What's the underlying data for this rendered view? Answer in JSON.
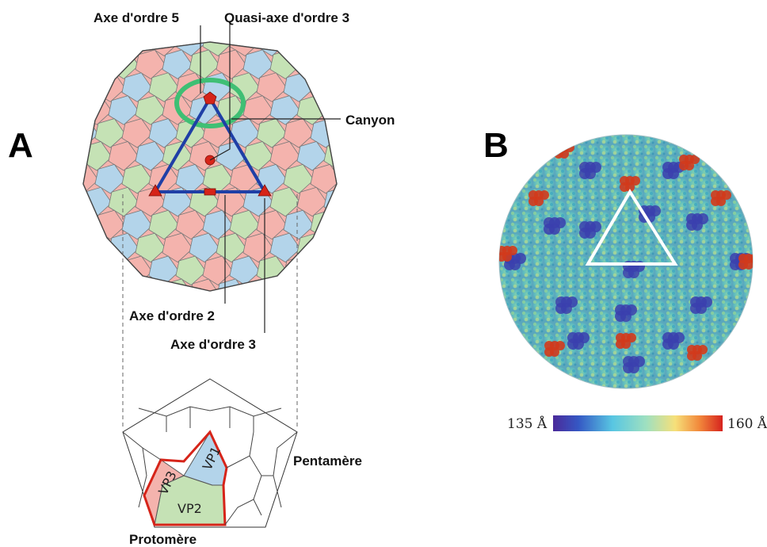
{
  "panel_a": {
    "letter": "A",
    "labels": {
      "axis5": "Axe d'ordre 5",
      "quasi3": "Quasi-axe d'ordre 3",
      "canyon": "Canyon",
      "axis2": "Axe d'ordre 2",
      "axis3": "Axe d'ordre 3",
      "pentamer": "Pentamère",
      "protomer": "Protomère"
    },
    "subunits": {
      "vp1": "VP1",
      "vp2": "VP2",
      "vp3": "VP3"
    }
  },
  "panel_b": {
    "letter": "B",
    "scale": {
      "min_label": "135 Å",
      "max_label": "160 Å"
    }
  },
  "colors": {
    "pink": "#f4b3ad",
    "green": "#c5e2b5",
    "blue": "#b3d4ea",
    "triangle": "#1f3fa6",
    "marker": "#d62419",
    "canyon_ring": "#3fbf74",
    "protomer_outline": "#d62419",
    "surface_cyan": "#4fb4c2",
    "surface_red": "#d23a1c",
    "surface_blue": "#3b3fae"
  }
}
